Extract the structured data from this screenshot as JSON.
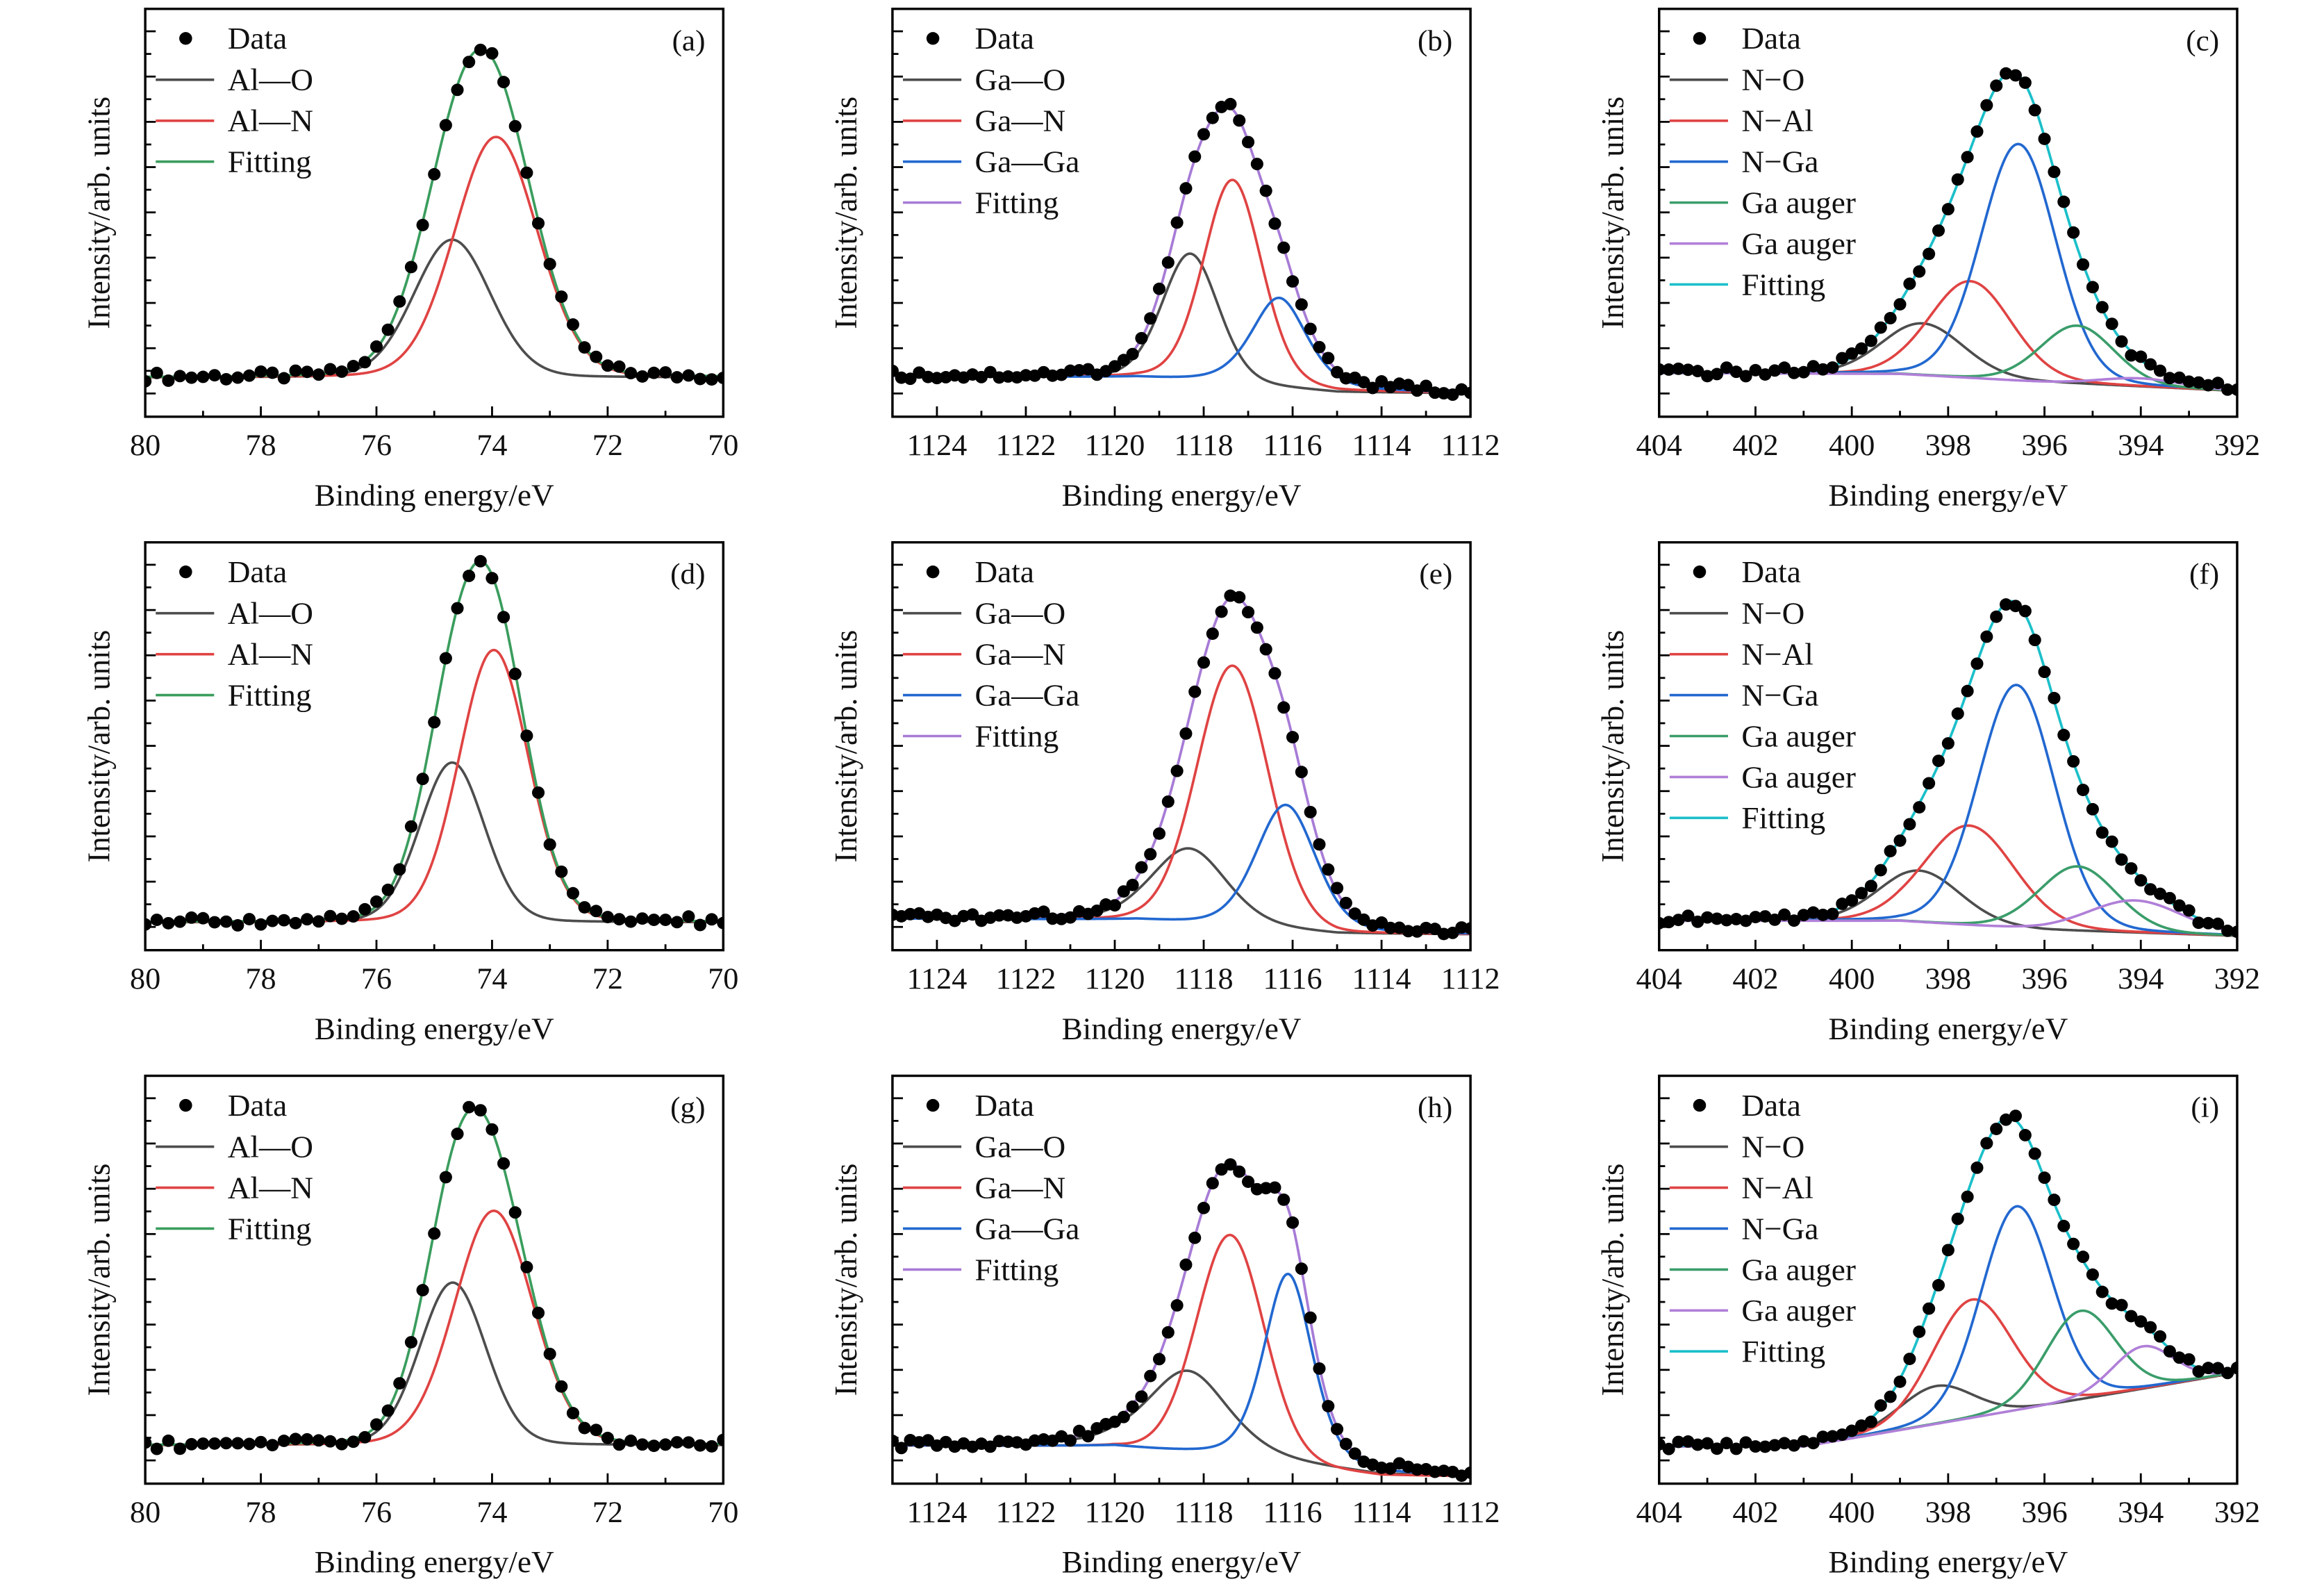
{
  "figure": {
    "y_axis_label": "Intensity/arb. units",
    "x_axis_label": "Binding energy/eV"
  },
  "chart_data": [
    {
      "panel_label": "(a)",
      "type": "line",
      "xlabel": "Binding energy/eV",
      "ylabel": "Intensity/arb. units",
      "xlim": [
        80,
        70
      ],
      "xticks": [
        "80",
        "78",
        "76",
        "74",
        "72",
        "70"
      ],
      "ylim": [
        0,
        100
      ],
      "y_tick_labels_shown": false,
      "grid": false,
      "legend_position": "top-left",
      "baseline": [
        [
          80,
          9.6
        ],
        [
          70,
          9.6
        ]
      ],
      "data": {
        "name": "Data",
        "marker": "filled-circle",
        "color": "#000000"
      },
      "components": [
        {
          "name": "Al—O",
          "color": "#4d4d4d",
          "center": 74.69,
          "height": 33.8,
          "fwhm": 1.57,
          "lorentz_fraction": 0.1
        },
        {
          "name": "Al—N",
          "color": "#e04343",
          "center": 73.93,
          "height": 59.0,
          "fwhm": 1.7,
          "lorentz_fraction": 0.1
        }
      ],
      "fitting": {
        "name": "Fitting",
        "color": "#3a9d5d"
      }
    },
    {
      "panel_label": "(b)",
      "type": "line",
      "xlabel": "Binding energy/eV",
      "ylabel": "Intensity/arb. units",
      "xlim": [
        1125,
        1112
      ],
      "xticks": [
        "1124",
        "1122",
        "1120",
        "1118",
        "1116",
        "1114",
        "1112"
      ],
      "ylim": [
        0,
        100
      ],
      "y_tick_labels_shown": false,
      "grid": false,
      "legend_position": "top-left",
      "baseline": [
        [
          1125,
          10
        ],
        [
          1119.5,
          9.4
        ],
        [
          1117,
          7.5
        ],
        [
          1115,
          5.9
        ],
        [
          1112,
          5.7
        ]
      ],
      "data": {
        "name": "Data",
        "marker": "filled-circle",
        "color": "#000000"
      },
      "components": [
        {
          "name": "Ga—O",
          "color": "#4d4d4d",
          "center": 1118.3,
          "height": 31.5,
          "fwhm": 1.5,
          "lorentz_fraction": 0.2
        },
        {
          "name": "Ga—N",
          "color": "#e04343",
          "center": 1117.35,
          "height": 50.3,
          "fwhm": 1.55,
          "lorentz_fraction": 0.2
        },
        {
          "name": "Ga—Ga",
          "color": "#2268d0",
          "center": 1116.3,
          "height": 22.2,
          "fwhm": 1.5,
          "lorentz_fraction": 0.5
        }
      ],
      "fitting": {
        "name": "Fitting",
        "color": "#a77bd6"
      }
    },
    {
      "panel_label": "(c)",
      "type": "line",
      "xlabel": "Binding energy/eV",
      "ylabel": "Intensity/arb. units",
      "xlim": [
        404,
        392
      ],
      "xticks": [
        "404",
        "402",
        "400",
        "398",
        "396",
        "394",
        "392"
      ],
      "ylim": [
        0,
        100
      ],
      "y_tick_labels_shown": false,
      "grid": false,
      "legend_position": "top-left",
      "baseline": [
        [
          404,
          10.7
        ],
        [
          399,
          10.5
        ],
        [
          396,
          8.5
        ],
        [
          392,
          6.3
        ]
      ],
      "data": {
        "name": "Data",
        "marker": "filled-circle",
        "color": "#000000"
      },
      "components": [
        {
          "name": "N−O",
          "color": "#4d4d4d",
          "center": 398.53,
          "height": 12.7,
          "fwhm": 2.0,
          "lorentz_fraction": 0.1
        },
        {
          "name": "N−Al",
          "color": "#e04343",
          "center": 397.54,
          "height": 23.7,
          "fwhm": 2.0,
          "lorentz_fraction": 0.1
        },
        {
          "name": "N−Ga",
          "color": "#2268d0",
          "center": 396.54,
          "height": 58.0,
          "fwhm": 1.83,
          "lorentz_fraction": 0.1
        },
        {
          "name": "Ga auger",
          "color": "#3a9d6a",
          "center": 395.32,
          "height": 14.2,
          "fwhm": 1.8,
          "lorentz_fraction": 0.1
        },
        {
          "name": "Ga auger",
          "color": "#b07fd8",
          "center": 394.0,
          "height": 2.0,
          "fwhm": 2.0,
          "lorentz_fraction": 0.1
        }
      ],
      "fitting": {
        "name": "Fitting",
        "color": "#1bbfc9"
      }
    },
    {
      "panel_label": "(d)",
      "type": "line",
      "xlabel": "Binding energy/eV",
      "ylabel": "Intensity/arb. units",
      "xlim": [
        80,
        70
      ],
      "xticks": [
        "80",
        "78",
        "76",
        "74",
        "72",
        "70"
      ],
      "ylim": [
        0,
        100
      ],
      "y_tick_labels_shown": false,
      "grid": false,
      "legend_position": "top-left",
      "baseline": [
        [
          80,
          6.8
        ],
        [
          70,
          6.8
        ]
      ],
      "data": {
        "name": "Data",
        "marker": "filled-circle",
        "color": "#000000"
      },
      "components": [
        {
          "name": "Al—O",
          "color": "#4d4d4d",
          "center": 74.69,
          "height": 39.2,
          "fwhm": 1.32,
          "lorentz_fraction": 0.1
        },
        {
          "name": "Al—N",
          "color": "#e04343",
          "center": 73.97,
          "height": 66.8,
          "fwhm": 1.42,
          "lorentz_fraction": 0.1
        }
      ],
      "fitting": {
        "name": "Fitting",
        "color": "#3a9d5d"
      }
    },
    {
      "panel_label": "(e)",
      "type": "line",
      "xlabel": "Binding energy/eV",
      "ylabel": "Intensity/arb. units",
      "xlim": [
        1125,
        1112
      ],
      "xticks": [
        "1124",
        "1122",
        "1120",
        "1118",
        "1116",
        "1114",
        "1112"
      ],
      "ylim": [
        0,
        100
      ],
      "y_tick_labels_shown": false,
      "grid": false,
      "legend_position": "top-left",
      "baseline": [
        [
          1125,
          7.7
        ],
        [
          1119.5,
          7.3
        ],
        [
          1117,
          5.5
        ],
        [
          1115,
          3.9
        ],
        [
          1112,
          3.8
        ]
      ],
      "data": {
        "name": "Data",
        "marker": "filled-circle",
        "color": "#000000"
      },
      "components": [
        {
          "name": "Ga—O",
          "color": "#4d4d4d",
          "center": 1118.33,
          "height": 18.5,
          "fwhm": 2.0,
          "lorentz_fraction": 0.3
        },
        {
          "name": "Ga—N",
          "color": "#e04343",
          "center": 1117.35,
          "height": 64.0,
          "fwhm": 1.9,
          "lorentz_fraction": 0.1
        },
        {
          "name": "Ga—Ga",
          "color": "#2268d0",
          "center": 1116.15,
          "height": 30.8,
          "fwhm": 1.6,
          "lorentz_fraction": 0.3
        }
      ],
      "fitting": {
        "name": "Fitting",
        "color": "#a77bd6"
      }
    },
    {
      "panel_label": "(f)",
      "type": "line",
      "xlabel": "Binding energy/eV",
      "ylabel": "Intensity/arb. units",
      "xlim": [
        404,
        392
      ],
      "xticks": [
        "404",
        "402",
        "400",
        "398",
        "396",
        "394",
        "392"
      ],
      "ylim": [
        0,
        100
      ],
      "y_tick_labels_shown": false,
      "grid": false,
      "legend_position": "top-left",
      "baseline": [
        [
          404,
          7.2
        ],
        [
          399,
          7.2
        ],
        [
          396,
          5
        ],
        [
          392,
          3.5
        ]
      ],
      "data": {
        "name": "Data",
        "marker": "filled-circle",
        "color": "#000000"
      },
      "components": [
        {
          "name": "N−O",
          "color": "#4d4d4d",
          "center": 398.6,
          "height": 12.6,
          "fwhm": 2.0,
          "lorentz_fraction": 0.1
        },
        {
          "name": "N−Al",
          "color": "#e04343",
          "center": 397.56,
          "height": 24.4,
          "fwhm": 2.2,
          "lorentz_fraction": 0.1
        },
        {
          "name": "N−Ga",
          "color": "#2268d0",
          "center": 396.58,
          "height": 59.6,
          "fwhm": 1.87,
          "lorentz_fraction": 0.1
        },
        {
          "name": "Ga auger",
          "color": "#3a9d6a",
          "center": 395.31,
          "height": 15.8,
          "fwhm": 1.9,
          "lorentz_fraction": 0.1
        },
        {
          "name": "Ga auger",
          "color": "#b07fd8",
          "center": 394.12,
          "height": 7.9,
          "fwhm": 2.3,
          "lorentz_fraction": 0.1
        }
      ],
      "fitting": {
        "name": "Fitting",
        "color": "#1bbfc9"
      }
    },
    {
      "panel_label": "(g)",
      "type": "line",
      "xlabel": "Binding energy/eV",
      "ylabel": "Intensity/arb. units",
      "xlim": [
        80,
        70
      ],
      "xticks": [
        "80",
        "78",
        "76",
        "74",
        "72",
        "70"
      ],
      "ylim": [
        0,
        100
      ],
      "y_tick_labels_shown": false,
      "grid": false,
      "legend_position": "top-left",
      "baseline": [
        [
          80,
          9.4
        ],
        [
          70,
          9.4
        ]
      ],
      "data": {
        "name": "Data",
        "marker": "filled-circle",
        "color": "#000000"
      },
      "components": [
        {
          "name": "Al—O",
          "color": "#4d4d4d",
          "center": 74.68,
          "height": 39.9,
          "fwhm": 1.35,
          "lorentz_fraction": 0.1
        },
        {
          "name": "Al—N",
          "color": "#e04343",
          "center": 73.97,
          "height": 57.5,
          "fwhm": 1.6,
          "lorentz_fraction": 0.1
        }
      ],
      "fitting": {
        "name": "Fitting",
        "color": "#3a9d5d"
      }
    },
    {
      "panel_label": "(h)",
      "type": "line",
      "xlabel": "Binding energy/eV",
      "ylabel": "Intensity/arb. units",
      "xlim": [
        1125,
        1112
      ],
      "xticks": [
        "1124",
        "1122",
        "1120",
        "1118",
        "1116",
        "1114",
        "1112"
      ],
      "ylim": [
        0,
        100
      ],
      "y_tick_labels_shown": false,
      "grid": false,
      "legend_position": "top-left",
      "baseline": [
        [
          1125,
          9.3
        ],
        [
          1120,
          9
        ],
        [
          1117,
          5.5
        ],
        [
          1114,
          1.9
        ],
        [
          1112,
          1.7
        ]
      ],
      "data": {
        "name": "Data",
        "marker": "filled-circle",
        "color": "#000000"
      },
      "components": [
        {
          "name": "Ga—O",
          "color": "#4d4d4d",
          "center": 1118.35,
          "height": 20.6,
          "fwhm": 2.2,
          "lorentz_fraction": 0.5
        },
        {
          "name": "Ga—N",
          "color": "#e04343",
          "center": 1117.4,
          "height": 55.0,
          "fwhm": 1.8,
          "lorentz_fraction": 0.1
        },
        {
          "name": "Ga—Ga",
          "color": "#2268d0",
          "center": 1116.1,
          "height": 47.0,
          "fwhm": 1.3,
          "lorentz_fraction": 0.4
        }
      ],
      "fitting": {
        "name": "Fitting",
        "color": "#a77bd6"
      }
    },
    {
      "panel_label": "(i)",
      "type": "line",
      "xlabel": "Binding energy/eV",
      "ylabel": "Intensity/arb. units",
      "xlim": [
        404,
        392
      ],
      "xticks": [
        "404",
        "402",
        "400",
        "398",
        "396",
        "394",
        "392"
      ],
      "ylim": [
        0,
        100
      ],
      "y_tick_labels_shown": false,
      "grid": false,
      "legend_position": "top-left",
      "baseline": [
        [
          404,
          9.1
        ],
        [
          401,
          9.1
        ],
        [
          392,
          27.2
        ]
      ],
      "data": {
        "name": "Data",
        "marker": "filled-circle",
        "color": "#000000"
      },
      "components": [
        {
          "name": "N−O",
          "color": "#4d4d4d",
          "center": 398.25,
          "height": 9.3,
          "fwhm": 1.8,
          "lorentz_fraction": 0.1
        },
        {
          "name": "N−Al",
          "color": "#e04343",
          "center": 397.5,
          "height": 29.0,
          "fwhm": 1.95,
          "lorentz_fraction": 0.1
        },
        {
          "name": "N−Ga",
          "color": "#2268d0",
          "center": 396.58,
          "height": 50.0,
          "fwhm": 1.75,
          "lorentz_fraction": 0.1
        },
        {
          "name": "Ga auger",
          "color": "#3a9d6a",
          "center": 395.25,
          "height": 21.7,
          "fwhm": 1.7,
          "lorentz_fraction": 0.1
        },
        {
          "name": "Ga auger",
          "color": "#b07fd8",
          "center": 393.96,
          "height": 10.4,
          "fwhm": 1.5,
          "lorentz_fraction": 0.1
        }
      ],
      "fitting": {
        "name": "Fitting",
        "color": "#1bbfc9"
      }
    }
  ]
}
